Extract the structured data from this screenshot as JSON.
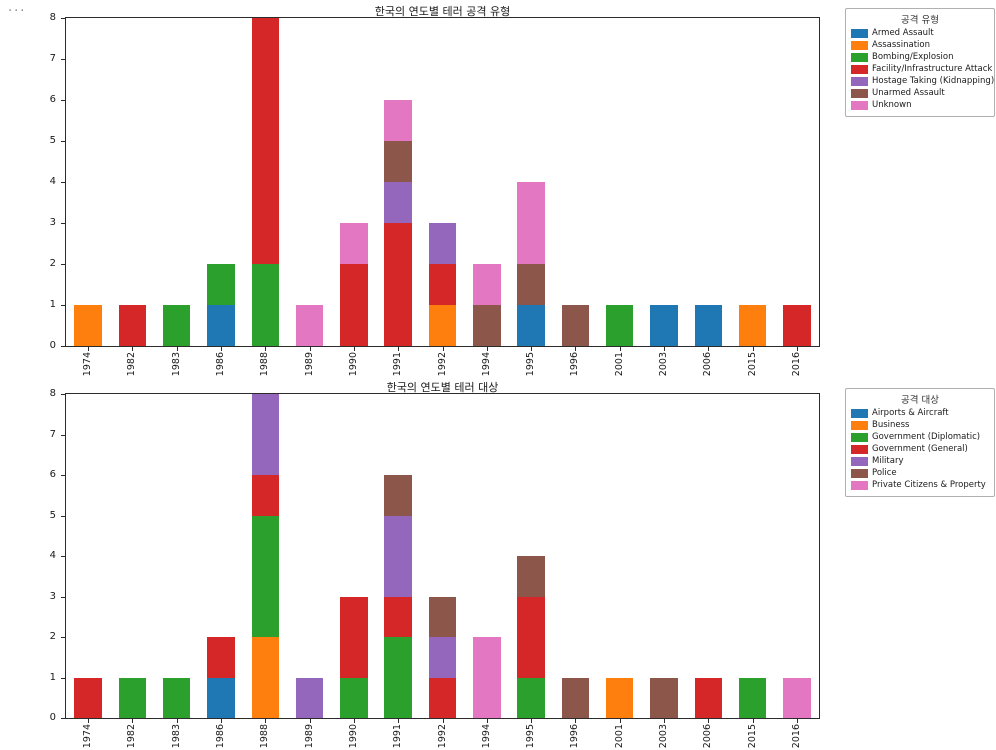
{
  "page": {
    "menu_ellipsis": "..."
  },
  "chart_data": [
    {
      "type": "bar",
      "stacked": true,
      "title": "한국의 연도별 테러 공격 유형",
      "legend_title": "공격 유형",
      "legend_position": "upper right outside",
      "grid": false,
      "xlabel": "",
      "ylabel": "",
      "ylim": [
        0,
        8
      ],
      "yticks": [
        0,
        1,
        2,
        3,
        4,
        5,
        6,
        7,
        8
      ],
      "categories": [
        "1974",
        "1982",
        "1983",
        "1986",
        "1988",
        "1989",
        "1990",
        "1991",
        "1992",
        "1994",
        "1995",
        "1996",
        "2001",
        "2003",
        "2006",
        "2015",
        "2016"
      ],
      "series": [
        {
          "name": "Armed Assault",
          "color": "#1f77b4",
          "values": [
            0,
            0,
            0,
            1,
            0,
            0,
            0,
            0,
            0,
            0,
            1,
            0,
            0,
            1,
            1,
            0,
            0
          ]
        },
        {
          "name": "Assassination",
          "color": "#ff7f0e",
          "values": [
            1,
            0,
            0,
            0,
            0,
            0,
            0,
            0,
            1,
            0,
            0,
            0,
            0,
            0,
            0,
            1,
            0
          ]
        },
        {
          "name": "Bombing/Explosion",
          "color": "#2ca02c",
          "values": [
            0,
            0,
            1,
            1,
            2,
            0,
            0,
            0,
            0,
            0,
            0,
            0,
            1,
            0,
            0,
            0,
            0
          ]
        },
        {
          "name": "Facility/Infrastructure Attack",
          "color": "#d62728",
          "values": [
            0,
            1,
            0,
            0,
            6,
            0,
            2,
            3,
            1,
            0,
            0,
            0,
            0,
            0,
            0,
            0,
            1
          ]
        },
        {
          "name": "Hostage Taking (Kidnapping)",
          "color": "#9467bd",
          "values": [
            0,
            0,
            0,
            0,
            0,
            0,
            0,
            1,
            1,
            0,
            0,
            0,
            0,
            0,
            0,
            0,
            0
          ]
        },
        {
          "name": "Unarmed Assault",
          "color": "#8c564b",
          "values": [
            0,
            0,
            0,
            0,
            0,
            0,
            0,
            1,
            0,
            1,
            1,
            1,
            0,
            0,
            0,
            0,
            0
          ]
        },
        {
          "name": "Unknown",
          "color": "#e377c2",
          "values": [
            0,
            0,
            0,
            0,
            0,
            1,
            1,
            1,
            0,
            1,
            2,
            0,
            0,
            0,
            0,
            0,
            0
          ]
        }
      ]
    },
    {
      "type": "bar",
      "stacked": true,
      "title": "한국의 연도별 테러 대상",
      "legend_title": "공격 대상",
      "legend_position": "upper right outside",
      "grid": false,
      "xlabel": "",
      "ylabel": "",
      "ylim": [
        0,
        8
      ],
      "yticks": [
        0,
        1,
        2,
        3,
        4,
        5,
        6,
        7,
        8
      ],
      "categories": [
        "1974",
        "1982",
        "1983",
        "1986",
        "1988",
        "1989",
        "1990",
        "1991",
        "1992",
        "1994",
        "1995",
        "1996",
        "2001",
        "2003",
        "2006",
        "2015",
        "2016"
      ],
      "series": [
        {
          "name": "Airports & Aircraft",
          "color": "#1f77b4",
          "values": [
            0,
            0,
            0,
            1,
            0,
            0,
            0,
            0,
            0,
            0,
            0,
            0,
            0,
            0,
            0,
            0,
            0
          ]
        },
        {
          "name": "Business",
          "color": "#ff7f0e",
          "values": [
            0,
            0,
            0,
            0,
            2,
            0,
            0,
            0,
            0,
            0,
            0,
            0,
            1,
            0,
            0,
            0,
            0
          ]
        },
        {
          "name": "Government (Diplomatic)",
          "color": "#2ca02c",
          "values": [
            0,
            1,
            1,
            0,
            3,
            0,
            1,
            2,
            0,
            0,
            1,
            0,
            0,
            0,
            0,
            1,
            0
          ]
        },
        {
          "name": "Government (General)",
          "color": "#d62728",
          "values": [
            1,
            0,
            0,
            1,
            1,
            0,
            2,
            1,
            1,
            0,
            2,
            0,
            0,
            0,
            1,
            0,
            0
          ]
        },
        {
          "name": "Military",
          "color": "#9467bd",
          "values": [
            0,
            0,
            0,
            0,
            2,
            1,
            0,
            2,
            1,
            0,
            0,
            0,
            0,
            0,
            0,
            0,
            0
          ]
        },
        {
          "name": "Police",
          "color": "#8c564b",
          "values": [
            0,
            0,
            0,
            0,
            0,
            0,
            0,
            1,
            1,
            0,
            1,
            1,
            0,
            1,
            0,
            0,
            0
          ]
        },
        {
          "name": "Private Citizens & Property",
          "color": "#e377c2",
          "values": [
            0,
            0,
            0,
            0,
            0,
            0,
            0,
            0,
            0,
            2,
            0,
            0,
            0,
            0,
            0,
            0,
            1
          ]
        }
      ]
    }
  ]
}
